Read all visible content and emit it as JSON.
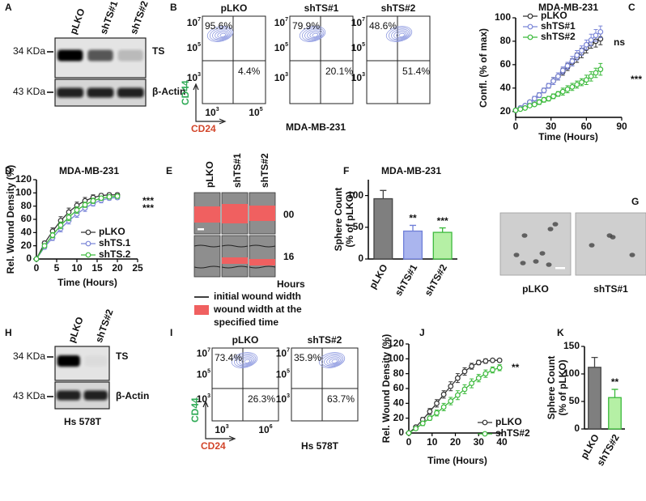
{
  "chart_data": [
    {
      "label": "C",
      "type": "line",
      "title": "MDA-MB-231",
      "xlabel": "Time (Hours)",
      "ylabel": "Confl. (% of max)",
      "x": [
        0,
        4,
        8,
        12,
        16,
        20,
        24,
        28,
        32,
        36,
        40,
        44,
        48,
        52,
        56,
        60,
        64,
        68,
        72
      ],
      "xlim": [
        0,
        90
      ],
      "xticks": [
        0,
        30,
        60,
        90
      ],
      "ylim": [
        15,
        100
      ],
      "yticks": [
        20,
        40,
        60,
        80,
        100
      ],
      "grid": false,
      "legend": "upper left",
      "annotations": [
        "ns",
        "***"
      ],
      "series": [
        {
          "name": "pLKO",
          "color": "#333333",
          "values": [
            21,
            23,
            25,
            28,
            31,
            34,
            38,
            42,
            46,
            50,
            54,
            58,
            62,
            66,
            70,
            74,
            78,
            80,
            82
          ],
          "errors": [
            1,
            1,
            1,
            1,
            2,
            2,
            2,
            2,
            3,
            3,
            3,
            3,
            3,
            4,
            4,
            4,
            4,
            5,
            5
          ]
        },
        {
          "name": "shTS#1",
          "color": "#7b86d8",
          "values": [
            21,
            23,
            25,
            28,
            31,
            34,
            38,
            42,
            46,
            50,
            55,
            59,
            63,
            68,
            72,
            77,
            81,
            85,
            88
          ],
          "errors": [
            1,
            1,
            1,
            1,
            2,
            2,
            2,
            2,
            3,
            3,
            3,
            3,
            4,
            4,
            4,
            4,
            5,
            5,
            5
          ]
        },
        {
          "name": "shTS#2",
          "color": "#3cba3c",
          "values": [
            21,
            22,
            23,
            25,
            26,
            28,
            30,
            31,
            33,
            35,
            37,
            39,
            41,
            43,
            45,
            47,
            50,
            53,
            56
          ],
          "errors": [
            1,
            1,
            1,
            1,
            1,
            2,
            2,
            2,
            2,
            2,
            3,
            3,
            3,
            3,
            3,
            4,
            4,
            4,
            5
          ]
        }
      ]
    },
    {
      "label": "D",
      "type": "line",
      "title": "MDA-MB-231",
      "xlabel": "Time (Hours)",
      "ylabel": "Rel. Wound Density (%)",
      "x": [
        0,
        2,
        4,
        6,
        8,
        10,
        12,
        14,
        16,
        18,
        20
      ],
      "xlim": [
        0,
        25
      ],
      "xticks": [
        0,
        5,
        10,
        15,
        20,
        25
      ],
      "ylim": [
        0,
        120
      ],
      "yticks": [
        0,
        20,
        40,
        60,
        80,
        100,
        120
      ],
      "grid": false,
      "legend": "lower right",
      "annotations": [
        "***",
        "***"
      ],
      "series": [
        {
          "name": "pLKO",
          "color": "#333333",
          "values": [
            0,
            24,
            42,
            58,
            71,
            81,
            88,
            93,
            96,
            97,
            97
          ],
          "errors": [
            0,
            3,
            5,
            6,
            6,
            5,
            5,
            4,
            3,
            3,
            3
          ]
        },
        {
          "name": "shTS.1",
          "color": "#7b86d8",
          "values": [
            0,
            18,
            32,
            46,
            58,
            68,
            77,
            84,
            89,
            92,
            93
          ],
          "errors": [
            0,
            3,
            4,
            5,
            5,
            5,
            5,
            4,
            4,
            3,
            3
          ]
        },
        {
          "name": "shTS.2",
          "color": "#3cba3c",
          "values": [
            0,
            20,
            36,
            51,
            63,
            74,
            82,
            88,
            92,
            94,
            95
          ],
          "errors": [
            0,
            3,
            4,
            5,
            5,
            5,
            4,
            4,
            3,
            3,
            3
          ]
        }
      ]
    },
    {
      "label": "F",
      "type": "bar",
      "title": "MDA-MB-231",
      "ylabel": [
        "Sphere Count",
        "(% of pLKO)"
      ],
      "categories": [
        "pLKO",
        "shTS#1",
        "shTS#2"
      ],
      "values": [
        95,
        44,
        42
      ],
      "errors": [
        13,
        9,
        7
      ],
      "colors": [
        "#7f7f7f",
        "#aab5ee",
        "#b5f0a5"
      ],
      "edgecolors": [
        "#444444",
        "#6f7fd8",
        "#3cba3c"
      ],
      "ylim": [
        0,
        125
      ],
      "yticks": [
        0,
        50,
        100
      ],
      "grid": false,
      "annotations": [
        null,
        "**",
        "***"
      ]
    },
    {
      "label": "J",
      "type": "line",
      "xlabel": "Time (Hours)",
      "ylabel": "Rel. Wound Density (%)",
      "x": [
        0,
        3,
        6,
        9,
        12,
        15,
        18,
        21,
        24,
        27,
        30,
        33,
        36,
        39
      ],
      "xlim": [
        0,
        40
      ],
      "xticks": [
        0,
        10,
        20,
        30,
        40
      ],
      "ylim": [
        0,
        120
      ],
      "yticks": [
        0,
        20,
        40,
        60,
        80,
        100,
        120
      ],
      "grid": false,
      "legend": "lower right",
      "annotations": [
        "**"
      ],
      "series": [
        {
          "name": "pLKO",
          "color": "#333333",
          "values": [
            0,
            8,
            18,
            29,
            40,
            52,
            63,
            74,
            83,
            90,
            95,
            97,
            98,
            98
          ],
          "errors": [
            0,
            2,
            3,
            4,
            5,
            5,
            6,
            6,
            5,
            4,
            3,
            3,
            2,
            2
          ]
        },
        {
          "name": "shTS#2",
          "color": "#3cba3c",
          "values": [
            0,
            6,
            13,
            20,
            27,
            35,
            43,
            51,
            59,
            67,
            74,
            80,
            85,
            88
          ],
          "errors": [
            0,
            2,
            3,
            3,
            4,
            5,
            5,
            6,
            6,
            6,
            5,
            5,
            4,
            4
          ]
        }
      ]
    },
    {
      "label": "K",
      "type": "bar",
      "ylabel": [
        "Sphere Count",
        "(% of pLKO)"
      ],
      "categories": [
        "pLKO",
        "shTS#2"
      ],
      "values": [
        112,
        57
      ],
      "errors": [
        18,
        15
      ],
      "colors": [
        "#7f7f7f",
        "#b5f0a5"
      ],
      "edgecolors": [
        "#444444",
        "#3cba3c"
      ],
      "ylim": [
        0,
        150
      ],
      "yticks": [
        0,
        50,
        100,
        150
      ],
      "grid": false,
      "annotations": [
        null,
        "**"
      ]
    }
  ],
  "blots": [
    {
      "label": "A",
      "lanes": [
        "pLKO",
        "shTS#1",
        "shTS#2"
      ],
      "markers": [
        "34 KDa",
        "43 KDa"
      ],
      "proteins": [
        "TS",
        "β-Actin"
      ]
    },
    {
      "label": "H",
      "lanes": [
        "pLKO",
        "shTS#2"
      ],
      "markers": [
        "34 KDa",
        "43 KDa"
      ],
      "proteins": [
        "TS",
        "β-Actin"
      ],
      "cell_line": "Hs 578T"
    }
  ],
  "flow": [
    {
      "label": "B",
      "plots": [
        {
          "title": "pLKO",
          "upper_left": "95.6%",
          "lower_right": "4.4%"
        },
        {
          "title": "shTS#1",
          "upper_left": "79.9%",
          "lower_right": "20.1%"
        },
        {
          "title": "shTS#2",
          "upper_left": "48.6%",
          "lower_right": "51.4%"
        }
      ],
      "y_axis": "CD44",
      "x_axis": "CD24",
      "cell_line": "MDA-MB-231",
      "yticks": [
        {
          "base": "10",
          "exp": "7"
        },
        {
          "base": "10",
          "exp": "5"
        },
        {
          "base": "10",
          "exp": "3"
        }
      ],
      "xticks": [
        {
          "base": "10",
          "exp": "3"
        },
        {
          "base": "10",
          "exp": "5"
        }
      ]
    },
    {
      "label": "I",
      "plots": [
        {
          "title": "pLKO",
          "upper_left": "73.4%",
          "lower_right": "26.3%"
        },
        {
          "title": "shTS#2",
          "upper_left": "35.9%",
          "lower_right": "63.7%"
        }
      ],
      "y_axis": "CD44",
      "x_axis": "CD24",
      "cell_line": "Hs 578T",
      "yticks": [
        {
          "base": "10",
          "exp": "7"
        },
        {
          "base": "10",
          "exp": "5"
        },
        {
          "base": "10",
          "exp": "3"
        }
      ],
      "xticks": [
        {
          "base": "10",
          "exp": "3"
        },
        {
          "base": "10",
          "exp": "6"
        }
      ]
    }
  ],
  "wound_images": {
    "label": "E",
    "columns": [
      "pLKO",
      "shTS#1",
      "shTS#2"
    ],
    "rows": [
      "00",
      "16"
    ],
    "row_unit": "Hours",
    "legend": {
      "line": "initial wound width",
      "band": [
        "wound width at the",
        "specified time"
      ]
    }
  },
  "sphere_images": {
    "label": "G",
    "captions": [
      "pLKO",
      "shTS#1"
    ]
  }
}
